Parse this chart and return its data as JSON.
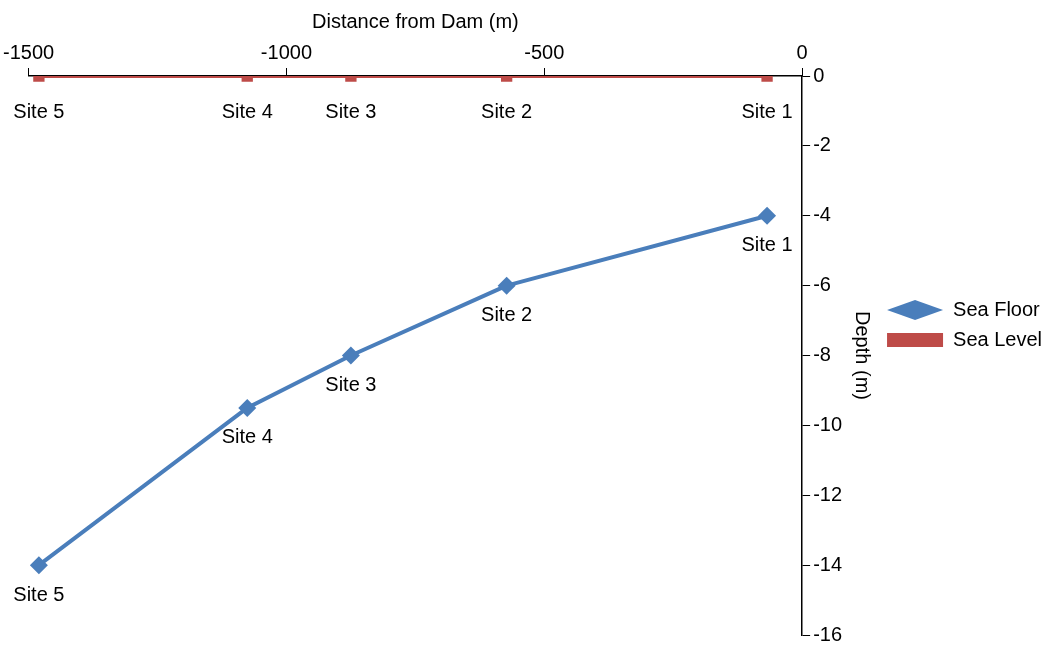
{
  "chart_data": {
    "type": "line",
    "xlabel": "Distance from Dam (m)",
    "ylabel": "Depth (m)",
    "x": [
      -1480,
      -1076,
      -875,
      -573,
      -68
    ],
    "series": [
      {
        "name": "Sea Floor",
        "color": "#4a7ebb",
        "marker": "diamond",
        "values": [
          -14,
          -9.5,
          -8,
          -6,
          -4
        ]
      },
      {
        "name": "Sea Level",
        "color": "#be4b48",
        "marker": "square",
        "values": [
          0,
          0,
          0,
          0,
          0
        ]
      }
    ],
    "xlim": [
      -1500,
      0
    ],
    "xticks": [
      -1500,
      -1000,
      -500,
      0
    ],
    "ylim": [
      -16,
      0
    ],
    "yticks": [
      0,
      -2,
      -4,
      -6,
      -8,
      -10,
      -12,
      -14,
      -16
    ],
    "grid": false,
    "legend": "right",
    "line_style": "solid",
    "annotations": [
      {
        "text": "Site 5",
        "x": -1480,
        "y": -14
      },
      {
        "text": "Site 4",
        "x": -1076,
        "y": -9.5
      },
      {
        "text": "Site 3",
        "x": -875,
        "y": -8
      },
      {
        "text": "Site 2",
        "x": -573,
        "y": -6
      },
      {
        "text": "Site 1",
        "x": -68,
        "y": -4
      },
      {
        "text": "Site 5",
        "x": -1480,
        "y": 0
      },
      {
        "text": "Site 4",
        "x": -1076,
        "y": 0
      },
      {
        "text": "Site 3",
        "x": -875,
        "y": 0
      },
      {
        "text": "Site 2",
        "x": -573,
        "y": 0
      },
      {
        "text": "Site 1",
        "x": -68,
        "y": 0
      }
    ]
  }
}
